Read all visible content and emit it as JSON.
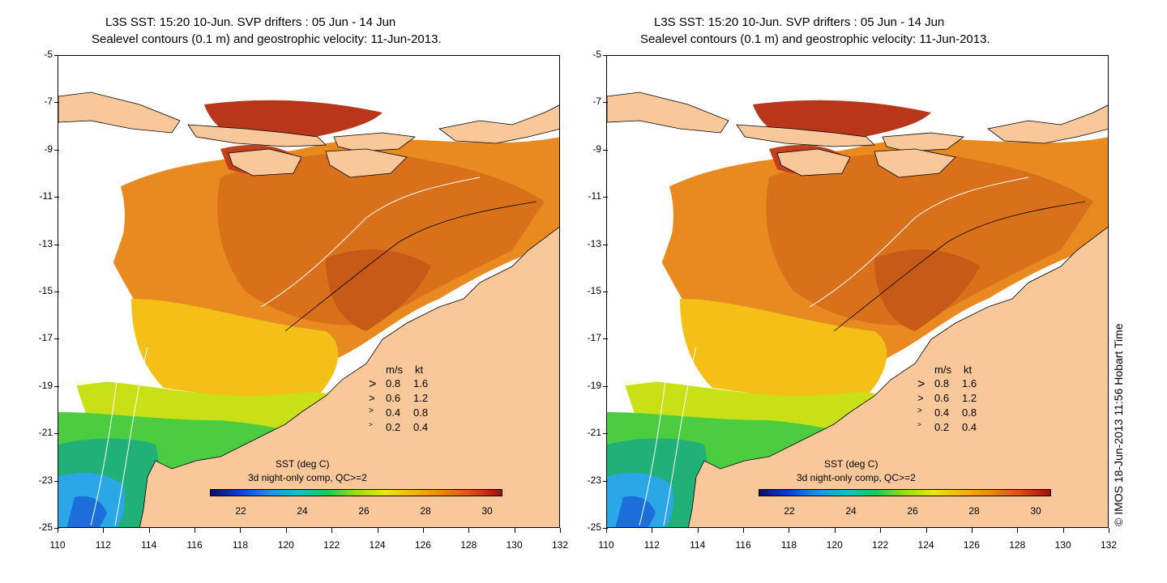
{
  "panels": [
    {
      "title_line1": "L3S SST: 15:20 10-Jun. SVP drifters : 05 Jun - 14 Jun",
      "title_line2": "Sealevel contours (0.1 m) and geostrophic velocity: 11-Jun-2013."
    },
    {
      "title_line1": "L3S SST: 15:20 10-Jun. SVP drifters : 05 Jun - 14 Jun",
      "title_line2": "Sealevel contours (0.1 m) and geostrophic velocity: 11-Jun-2013."
    }
  ],
  "axes": {
    "lat_ticks": [
      "-5",
      "-7",
      "-9",
      "-11",
      "-13",
      "-15",
      "-17",
      "-19",
      "-21",
      "-23",
      "-25"
    ],
    "lon_ticks": [
      "110",
      "112",
      "114",
      "116",
      "118",
      "120",
      "122",
      "124",
      "126",
      "128",
      "130",
      "132"
    ],
    "lat_range": [
      -25,
      -5
    ],
    "lon_range": [
      110,
      132
    ]
  },
  "speed_legend": {
    "header_ms": "m/s",
    "header_kt": "kt",
    "rows": [
      {
        "ms": "0.8",
        "kt": "1.6"
      },
      {
        "ms": "0.6",
        "kt": "1.2"
      },
      {
        "ms": "0.4",
        "kt": "0.8"
      },
      {
        "ms": "0.2",
        "kt": "0.4"
      }
    ]
  },
  "colorbar": {
    "title": "SST (deg C)",
    "subtitle": "3d night-only comp, QC>=2",
    "ticks": [
      "22",
      "24",
      "26",
      "28",
      "30"
    ],
    "range": [
      21,
      30.5
    ]
  },
  "credit": "© IMOS 18-Jun-2013 11:56 Hobart Time",
  "colors": {
    "land": "#f9c89a",
    "sst_warm": "#e07a18",
    "sst_hot": "#b8361a",
    "sst_cool": "#2aa7e6"
  }
}
